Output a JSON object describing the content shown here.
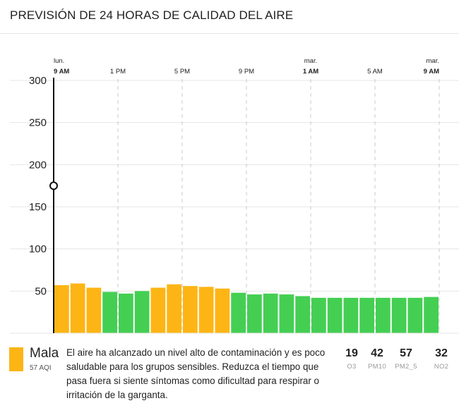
{
  "header": {
    "title": "PREVISIÓN DE 24 HORAS DE CALIDAD DEL AIRE"
  },
  "colors": {
    "moderate": "#FDB515",
    "good": "#44CF53",
    "marker": "#111111",
    "grid": "#e6e6e6",
    "tickdash": "#c9c9c9"
  },
  "chart_data": {
    "type": "bar",
    "title": "PREVISIÓN DE 24 HORAS DE CALIDAD DEL AIRE",
    "ylim": [
      0,
      300
    ],
    "yticks": [
      50,
      100,
      150,
      200,
      250,
      300
    ],
    "grid": true,
    "x_tick_labels": [
      {
        "index": 0,
        "day": "lun.",
        "time": "9 AM"
      },
      {
        "index": 4,
        "day": "",
        "time": "1 PM"
      },
      {
        "index": 8,
        "day": "",
        "time": "5 PM"
      },
      {
        "index": 12,
        "day": "",
        "time": "9 PM"
      },
      {
        "index": 16,
        "day": "mar.",
        "time": "1 AM"
      },
      {
        "index": 20,
        "day": "",
        "time": "5 AM"
      },
      {
        "index": 24,
        "day": "mar.",
        "time": "9 AM"
      }
    ],
    "values": [
      57,
      59,
      54,
      49,
      47,
      50,
      54,
      58,
      56,
      55,
      53,
      48,
      46,
      47,
      46,
      44,
      42,
      42,
      42,
      42,
      42,
      42,
      42,
      43
    ],
    "categories": [
      "moderate",
      "moderate",
      "moderate",
      "good",
      "good",
      "good",
      "moderate",
      "moderate",
      "moderate",
      "moderate",
      "moderate",
      "good",
      "good",
      "good",
      "good",
      "good",
      "good",
      "good",
      "good",
      "good",
      "good",
      "good",
      "good",
      "good"
    ],
    "current_marker": {
      "index": 0,
      "value": 175
    }
  },
  "summary": {
    "category": "Mala",
    "aqi": "57 AQI",
    "color": "#FDB515",
    "description": "El aire ha alcanzado un nivel alto de contaminación y es poco saludable para los grupos sensibles. Reduzca el tiempo que pasa fuera si siente síntomas como dificultad para respirar o irritación de la garganta."
  },
  "pollutants": [
    {
      "value": "19",
      "name": "O3"
    },
    {
      "value": "42",
      "name": "PM10"
    },
    {
      "value": "57",
      "name": "PM2_5"
    },
    {
      "value": "32",
      "name": "NO2"
    }
  ]
}
